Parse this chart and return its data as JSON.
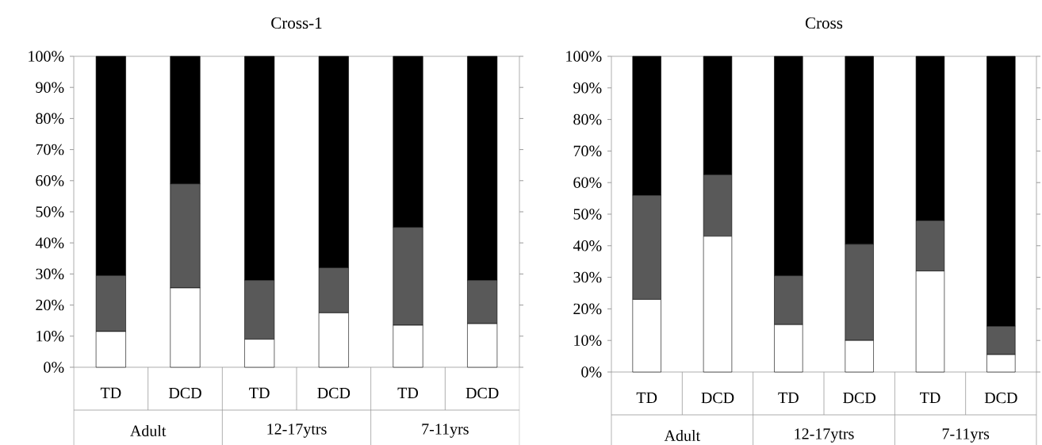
{
  "chart_data": [
    {
      "type": "bar",
      "title": "Cross-1",
      "stacked": true,
      "categories": [
        "TD",
        "DCD",
        "TD",
        "DCD",
        "TD",
        "DCD"
      ],
      "series": [
        {
          "color": "#ffffff",
          "values": [
            11.5,
            25.5,
            9,
            17.5,
            13.5,
            14
          ]
        },
        {
          "color": "#595959",
          "values": [
            18,
            33.5,
            19,
            14.5,
            31.5,
            14
          ]
        },
        {
          "color": "#000000",
          "values": [
            70.5,
            41,
            72,
            68,
            55,
            72
          ]
        }
      ],
      "ylim": [
        0,
        100
      ],
      "yticks": [
        {
          "value": 0,
          "label": "0%"
        },
        {
          "value": 10,
          "label": "10%"
        },
        {
          "value": 20,
          "label": "20%"
        },
        {
          "value": 30,
          "label": "30%"
        },
        {
          "value": 40,
          "label": "40%"
        },
        {
          "value": 50,
          "label": "50%"
        },
        {
          "value": 60,
          "label": "60%"
        },
        {
          "value": 70,
          "label": "70%"
        },
        {
          "value": 80,
          "label": "80%"
        },
        {
          "value": 90,
          "label": "90%"
        },
        {
          "value": 100,
          "label": "100%"
        }
      ],
      "annotations": [
        "Adult",
        "12-17ytrs",
        "7-11yrs"
      ]
    },
    {
      "type": "bar",
      "title": "Cross",
      "stacked": true,
      "categories": [
        "TD",
        "DCD",
        "TD",
        "DCD",
        "TD",
        "DCD"
      ],
      "series": [
        {
          "color": "#ffffff",
          "values": [
            23,
            43,
            15,
            10,
            32,
            5.5
          ]
        },
        {
          "color": "#595959",
          "values": [
            33,
            19.5,
            15.5,
            30.5,
            16,
            9
          ]
        },
        {
          "color": "#000000",
          "values": [
            44,
            37.5,
            69.5,
            59.5,
            52,
            85.5
          ]
        }
      ],
      "ylim": [
        0,
        100
      ],
      "yticks": [
        {
          "value": 0,
          "label": "0%"
        },
        {
          "value": 10,
          "label": "10%"
        },
        {
          "value": 20,
          "label": "20%"
        },
        {
          "value": 30,
          "label": "30%"
        },
        {
          "value": 40,
          "label": "40%"
        },
        {
          "value": 50,
          "label": "50%"
        },
        {
          "value": 60,
          "label": "60%"
        },
        {
          "value": 70,
          "label": "70%"
        },
        {
          "value": 80,
          "label": "80%"
        },
        {
          "value": 90,
          "label": "90%"
        },
        {
          "value": 100,
          "label": "100%"
        }
      ],
      "annotations": [
        "Adult",
        "12-17ytrs",
        "7-11yrs"
      ]
    }
  ]
}
